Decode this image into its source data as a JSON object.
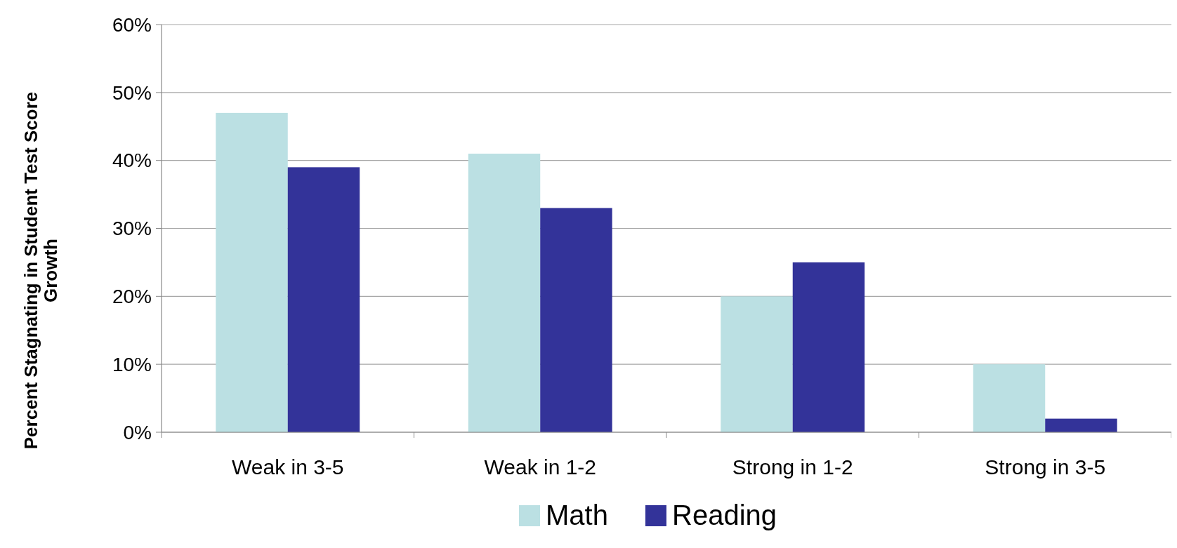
{
  "chart_data": {
    "type": "bar",
    "ylabel": "Percent Stagnating in Student Test Score Growth",
    "categories": [
      "Weak in 3-5",
      "Weak in 1-2",
      "Strong in 1-2",
      "Strong in 3-5"
    ],
    "series": [
      {
        "name": "Math",
        "color": "#bbe0e3",
        "values": [
          47,
          41,
          20,
          10
        ]
      },
      {
        "name": "Reading",
        "color": "#333399",
        "values": [
          39,
          33,
          25,
          2
        ]
      }
    ],
    "ylim": [
      0,
      60
    ],
    "yticks": [
      {
        "value": 0,
        "label": "0%"
      },
      {
        "value": 10,
        "label": "10%"
      },
      {
        "value": 20,
        "label": "20%"
      },
      {
        "value": 30,
        "label": "30%"
      },
      {
        "value": 40,
        "label": "40%"
      },
      {
        "value": 50,
        "label": "50%"
      },
      {
        "value": 60,
        "label": "60%"
      }
    ],
    "grid": "y",
    "legend": "bottom"
  }
}
